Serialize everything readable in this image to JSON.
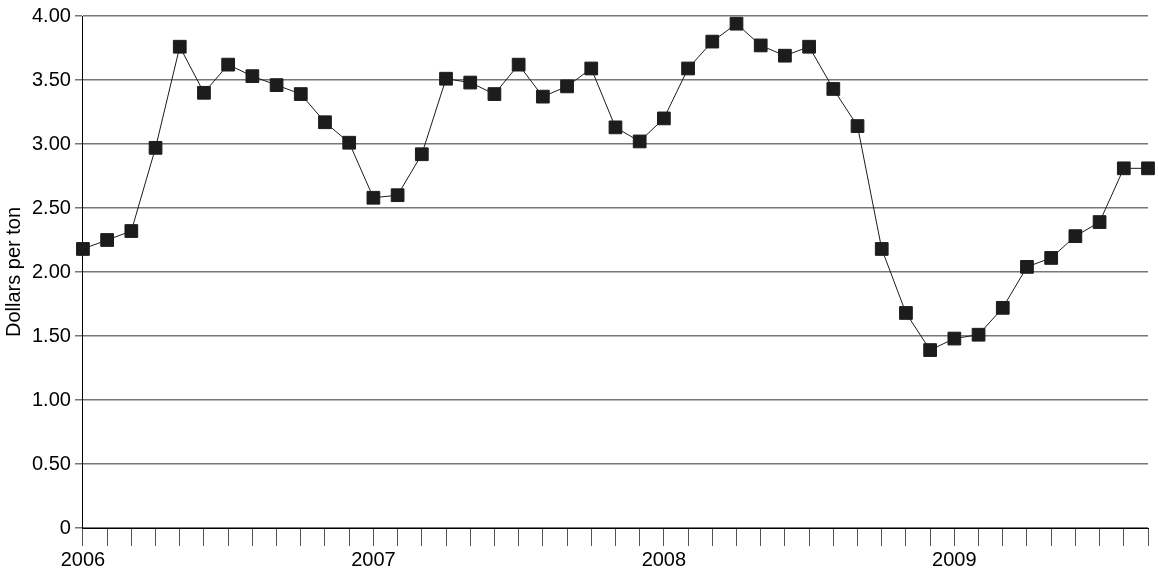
{
  "chart_data": {
    "type": "line",
    "ylabel": "Dollars per ton",
    "categories": [
      "2006",
      null,
      null,
      null,
      null,
      null,
      null,
      null,
      null,
      null,
      null,
      null,
      "2007",
      null,
      null,
      null,
      null,
      null,
      null,
      null,
      null,
      null,
      null,
      null,
      "2008",
      null,
      null,
      null,
      null,
      null,
      null,
      null,
      null,
      null,
      null,
      null,
      "2009",
      null,
      null,
      null,
      null,
      null,
      null,
      null,
      null
    ],
    "series": [
      {
        "color": "#1c1c1c",
        "values": [
          2.18,
          2.25,
          2.32,
          2.97,
          3.76,
          3.4,
          3.62,
          3.53,
          3.46,
          3.39,
          3.17,
          3.01,
          2.58,
          2.6,
          2.92,
          3.51,
          3.48,
          3.39,
          3.62,
          3.37,
          3.45,
          3.59,
          3.13,
          3.02,
          3.2,
          3.59,
          3.8,
          3.94,
          3.77,
          3.69,
          3.76,
          3.43,
          3.14,
          2.18,
          1.68,
          1.39,
          1.48,
          1.51,
          1.72,
          2.04,
          2.11,
          2.28,
          2.39,
          2.81,
          2.81
        ]
      }
    ],
    "ylim": [
      0,
      4
    ],
    "yticks": [
      {
        "value": 0,
        "label": "0"
      },
      {
        "value": 0.5,
        "label": "0.50"
      },
      {
        "value": 1,
        "label": "1.00"
      },
      {
        "value": 1.5,
        "label": "1.50"
      },
      {
        "value": 2,
        "label": "2.00"
      },
      {
        "value": 2.5,
        "label": "2.50"
      },
      {
        "value": 3,
        "label": "3.00"
      },
      {
        "value": 3.5,
        "label": "3.50"
      },
      {
        "value": 4,
        "label": "4.00"
      }
    ],
    "grid": "y",
    "marker": "square",
    "line_style": "solid"
  }
}
